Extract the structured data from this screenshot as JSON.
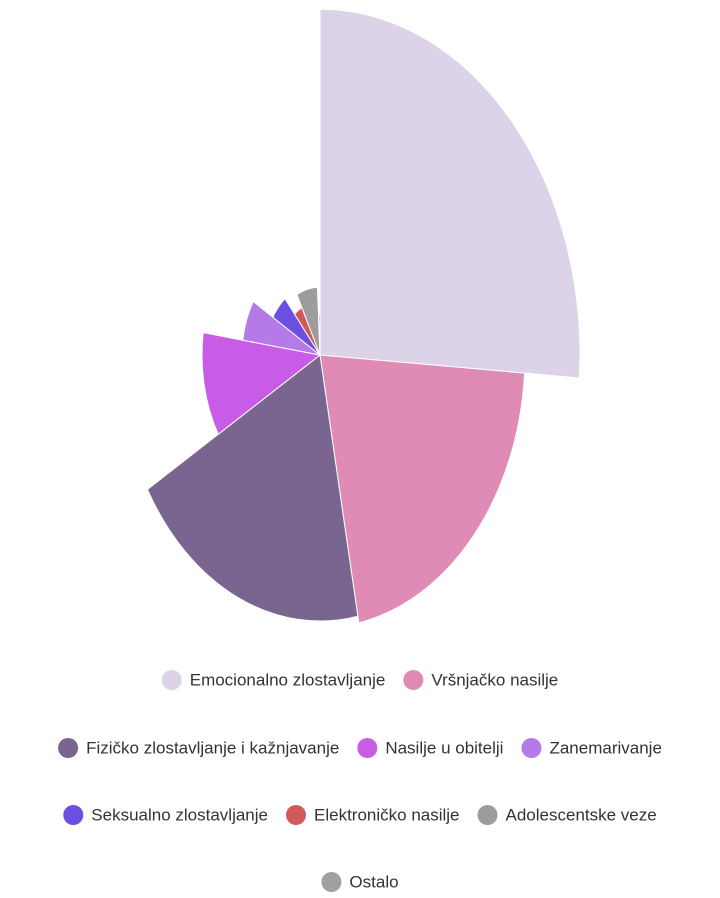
{
  "chart_data": {
    "type": "variablepie",
    "categories": [
      "Emocionalno zlostavljanje",
      "Vršnjačko nasilje",
      "Fizičko zlostavljanje i kažnjavanje",
      "Nasilje u obitelji",
      "Zanemarivanje",
      "Seksualno zlostavljanje",
      "Elektroničko nasilje",
      "Adolescentske veze",
      "Ostalo"
    ],
    "values": [
      25.8,
      20.7,
      19.4,
      10.6,
      6.3,
      5.3,
      3.5,
      6.6,
      0.8
    ],
    "z": [
      260,
      205,
      200,
      118,
      78,
      55,
      40,
      51,
      30
    ],
    "colors": [
      "#dcd3e8",
      "#e08bb5",
      "#7a6490",
      "#c85ce6",
      "#b57ae8",
      "#6a4fe0",
      "#cf5a5a",
      "#9c9c9c",
      "#a0a0a0"
    ],
    "legend": "bottom"
  }
}
